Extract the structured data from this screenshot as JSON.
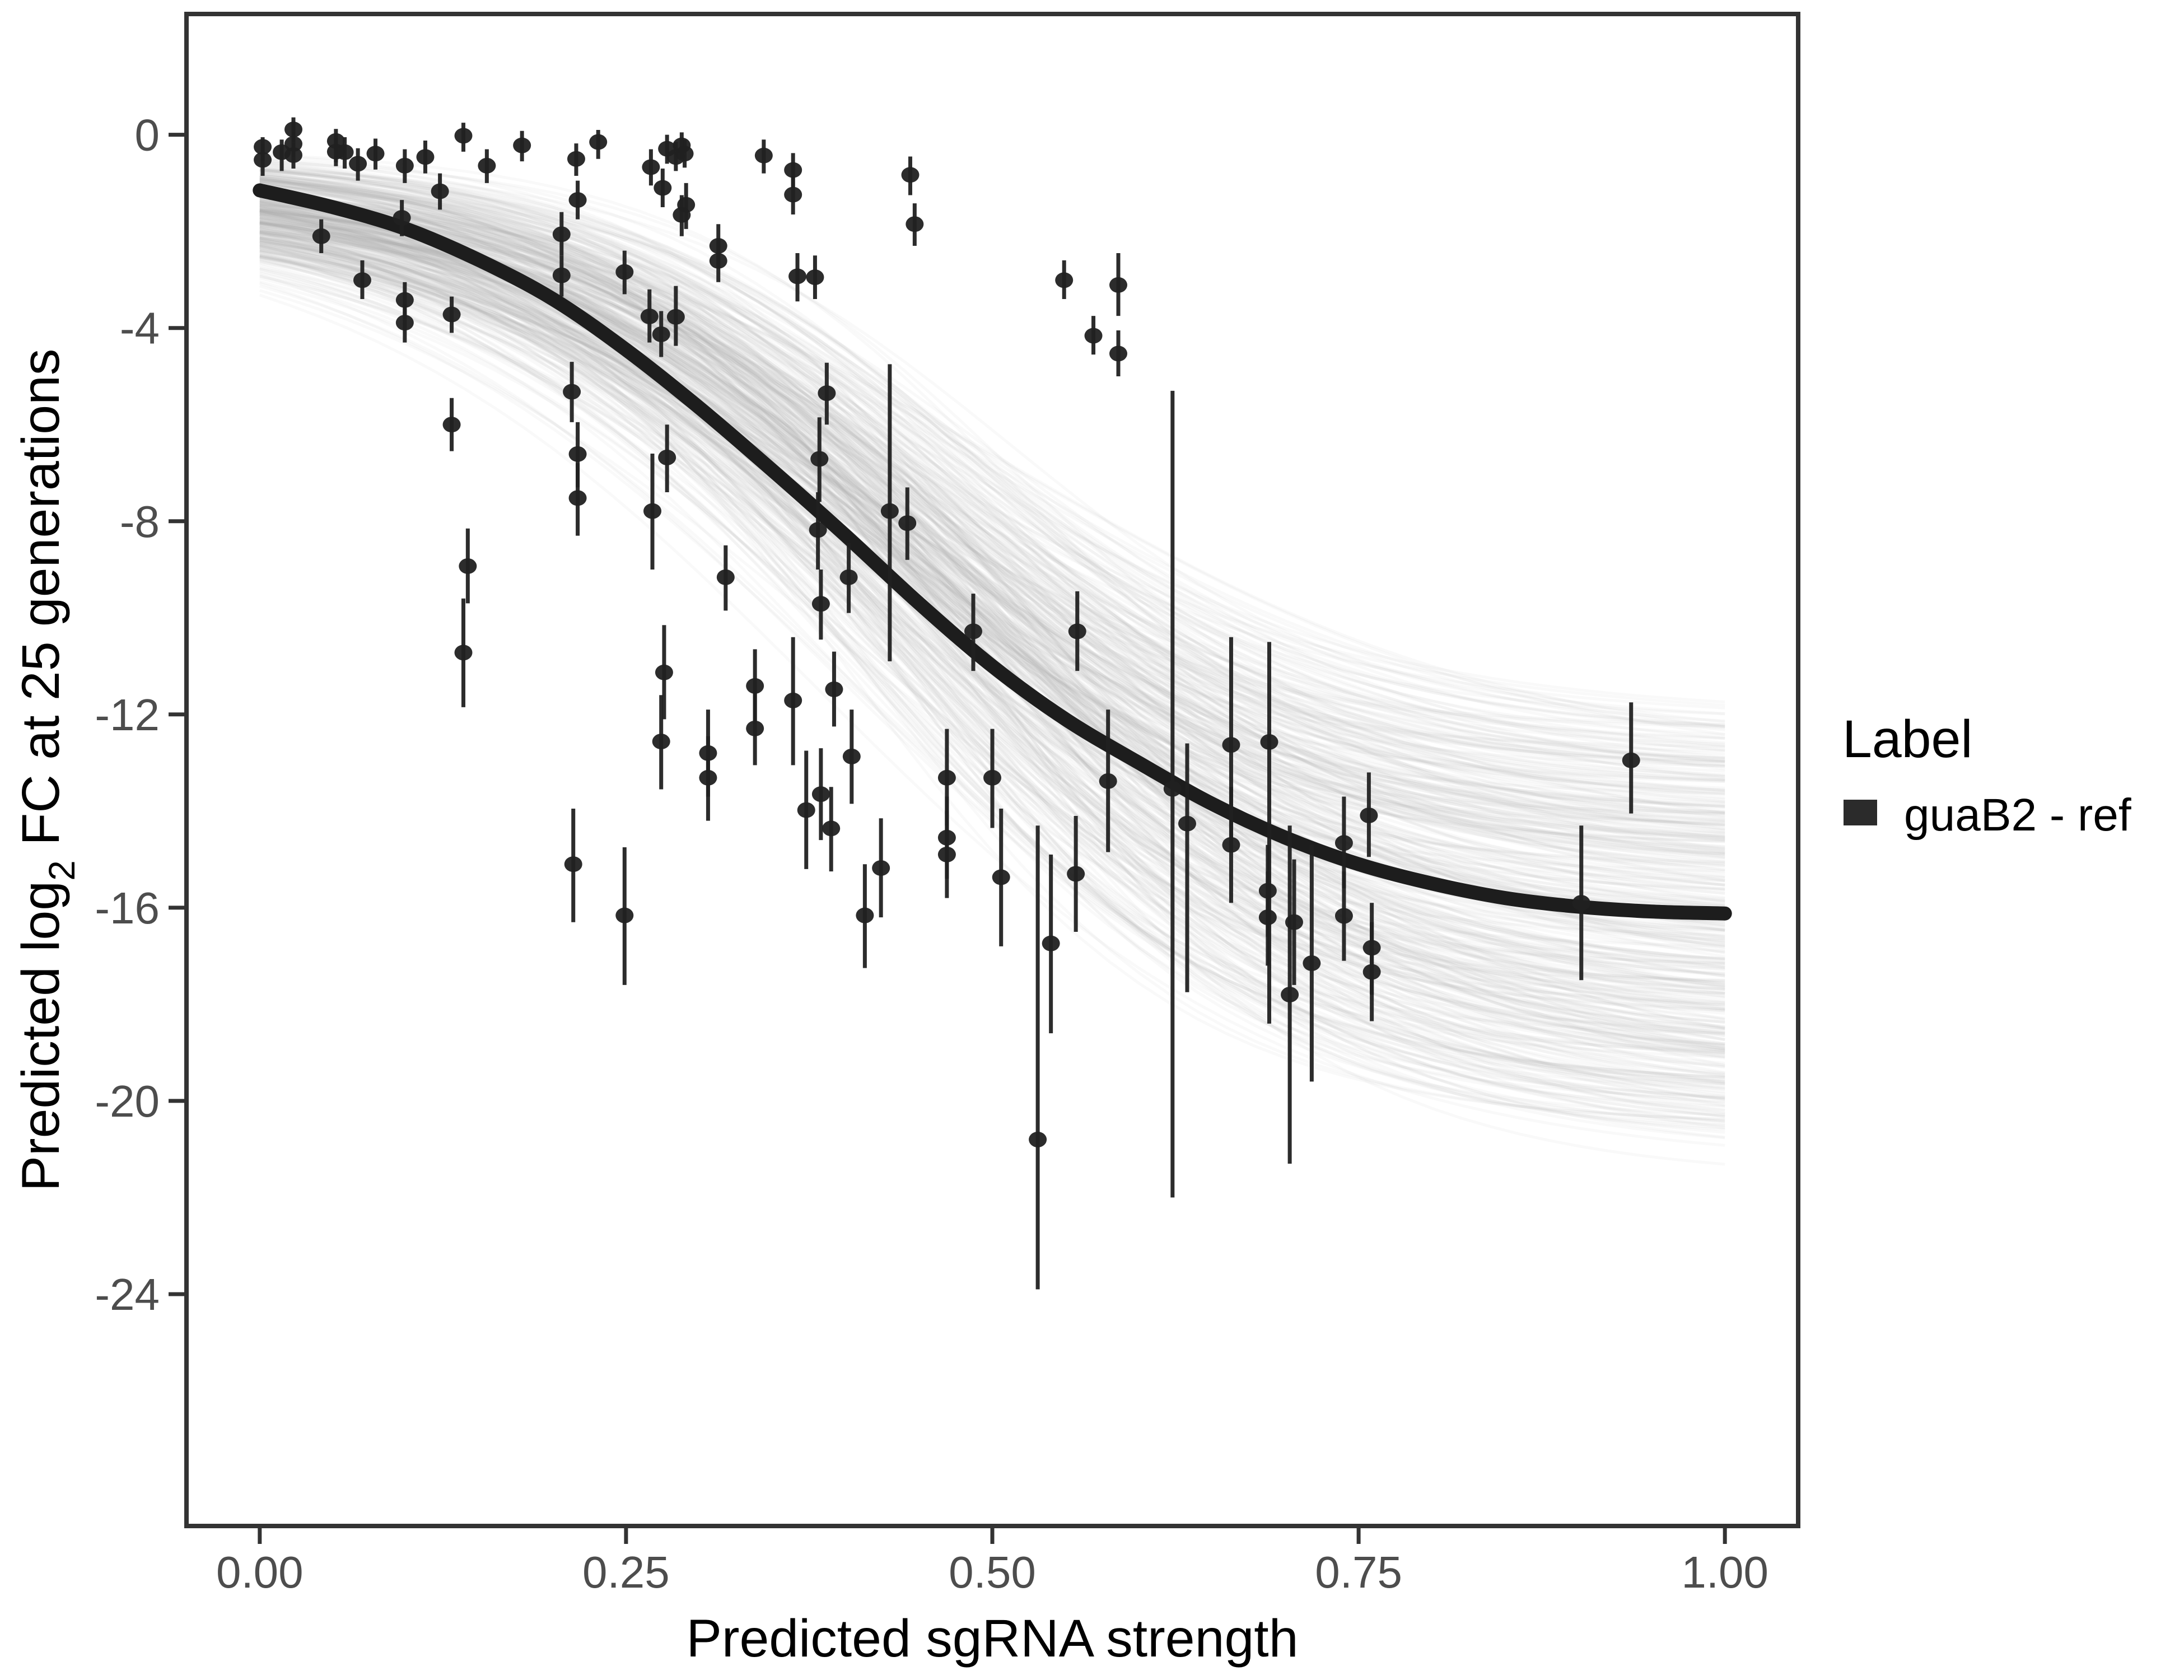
{
  "chart_data": {
    "type": "scatter",
    "title": "",
    "xlabel": "Predicted sgRNA strength",
    "ylabel_parts": {
      "prefix": "Predicted  log",
      "sub": "2",
      "suffix": " FC at 25 generations"
    },
    "x_ticks": [
      "0.00",
      "0.25",
      "0.50",
      "0.75",
      "1.00"
    ],
    "x_tick_values": [
      0,
      0.25,
      0.5,
      0.75,
      1.0
    ],
    "y_ticks": [
      "0",
      "-4",
      "-8",
      "-12",
      "-16",
      "-20",
      "-24"
    ],
    "y_tick_values": [
      0,
      -4,
      -8,
      -12,
      -16,
      -20,
      -24
    ],
    "xlim": [
      -0.05,
      1.05
    ],
    "ylim": [
      -28.8,
      2.5
    ],
    "grid": "off",
    "legend": {
      "position": "right",
      "title": "Label",
      "items": [
        {
          "label": "guaB2 - ref",
          "swatch_color": "#2b2b2b"
        }
      ]
    },
    "fit_curve": {
      "series": "guaB2 - ref",
      "points": [
        [
          0.0,
          -1.15
        ],
        [
          0.05,
          -1.5
        ],
        [
          0.1,
          -1.95
        ],
        [
          0.15,
          -2.6
        ],
        [
          0.2,
          -3.4
        ],
        [
          0.25,
          -4.45
        ],
        [
          0.3,
          -5.65
        ],
        [
          0.35,
          -6.95
        ],
        [
          0.4,
          -8.3
        ],
        [
          0.45,
          -9.7
        ],
        [
          0.5,
          -11.0
        ],
        [
          0.55,
          -12.1
        ],
        [
          0.6,
          -13.0
        ],
        [
          0.65,
          -13.85
        ],
        [
          0.7,
          -14.55
        ],
        [
          0.75,
          -15.1
        ],
        [
          0.8,
          -15.5
        ],
        [
          0.85,
          -15.8
        ],
        [
          0.9,
          -15.98
        ],
        [
          0.95,
          -16.08
        ],
        [
          1.0,
          -16.12
        ]
      ]
    },
    "posterior_band": {
      "description": "posterior draw spaghetti, logistic curves y = -(c + L/(1+exp(-k(x-x0))))",
      "draws": 400,
      "seed": 42,
      "c_range": [
        0.2,
        1.8
      ],
      "L_range": [
        11.5,
        20.0
      ],
      "k_range": [
        5.5,
        9.0
      ],
      "x0_range": [
        0.38,
        0.52
      ],
      "x_domain": [
        0,
        1
      ]
    },
    "points_format": [
      "x",
      "y",
      "ymin",
      "ymax"
    ],
    "points": [
      [
        0.002,
        -0.25,
        -0.55,
        -0.05
      ],
      [
        0.002,
        -0.52,
        -0.85,
        -0.2
      ],
      [
        0.015,
        -0.36,
        -0.75,
        -0.1
      ],
      [
        0.023,
        0.11,
        -0.15,
        0.36
      ],
      [
        0.023,
        -0.19,
        -0.45,
        0.05
      ],
      [
        0.023,
        -0.42,
        -0.7,
        -0.18
      ],
      [
        0.052,
        -0.13,
        -0.57,
        0.12
      ],
      [
        0.052,
        -0.35,
        -0.65,
        -0.08
      ],
      [
        0.058,
        -0.36,
        -0.7,
        -0.05
      ],
      [
        0.067,
        -0.6,
        -0.95,
        -0.28
      ],
      [
        0.079,
        -0.39,
        -0.72,
        -0.08
      ],
      [
        0.099,
        -0.64,
        -1.0,
        -0.3
      ],
      [
        0.113,
        -0.46,
        -0.8,
        -0.12
      ],
      [
        0.123,
        -1.17,
        -1.55,
        -0.8
      ],
      [
        0.139,
        -0.02,
        -0.35,
        0.25
      ],
      [
        0.155,
        -0.64,
        -1.0,
        -0.3
      ],
      [
        0.179,
        -0.22,
        -0.55,
        0.08
      ],
      [
        0.216,
        -0.5,
        -0.85,
        -0.18
      ],
      [
        0.217,
        -1.35,
        -1.75,
        -0.95
      ],
      [
        0.042,
        -2.1,
        -2.45,
        -1.75
      ],
      [
        0.097,
        -1.72,
        -2.1,
        -1.35
      ],
      [
        0.07,
        -3.01,
        -3.4,
        -2.6
      ],
      [
        0.099,
        -3.42,
        -3.8,
        -3.05
      ],
      [
        0.099,
        -3.89,
        -4.3,
        -3.5
      ],
      [
        0.131,
        -3.72,
        -4.1,
        -3.35
      ],
      [
        0.131,
        -6.0,
        -6.55,
        -5.45
      ],
      [
        0.206,
        -2.06,
        -2.5,
        -1.6
      ],
      [
        0.206,
        -2.91,
        -3.35,
        -2.5
      ],
      [
        0.213,
        -5.32,
        -5.95,
        -4.7
      ],
      [
        0.217,
        -6.61,
        -7.3,
        -5.95
      ],
      [
        0.217,
        -7.52,
        -8.3,
        -6.8
      ],
      [
        0.231,
        -0.15,
        -0.5,
        0.1
      ],
      [
        0.267,
        -0.67,
        -1.05,
        -0.3
      ],
      [
        0.278,
        -0.29,
        -0.6,
        0.0
      ],
      [
        0.284,
        -0.46,
        -0.75,
        -0.15
      ],
      [
        0.288,
        -0.22,
        -0.5,
        0.05
      ],
      [
        0.29,
        -0.39,
        -0.68,
        -0.1
      ],
      [
        0.275,
        -1.1,
        -1.5,
        -0.7
      ],
      [
        0.291,
        -1.45,
        -1.95,
        -1.0
      ],
      [
        0.288,
        -1.66,
        -2.1,
        -1.25
      ],
      [
        0.313,
        -2.3,
        -2.75,
        -1.85
      ],
      [
        0.313,
        -2.61,
        -3.05,
        -2.18
      ],
      [
        0.344,
        -0.43,
        -0.8,
        -0.1
      ],
      [
        0.364,
        -0.73,
        -1.1,
        -0.38
      ],
      [
        0.364,
        -1.24,
        -1.65,
        -0.85
      ],
      [
        0.444,
        -0.83,
        -1.25,
        -0.45
      ],
      [
        0.447,
        -1.85,
        -2.3,
        -1.42
      ],
      [
        0.367,
        -2.93,
        -3.45,
        -2.45
      ],
      [
        0.379,
        -2.95,
        -3.4,
        -2.5
      ],
      [
        0.549,
        -3.01,
        -3.4,
        -2.6
      ],
      [
        0.586,
        -3.11,
        -3.75,
        -2.45
      ],
      [
        0.569,
        -4.16,
        -4.55,
        -3.75
      ],
      [
        0.586,
        -4.53,
        -5.0,
        -4.05
      ],
      [
        0.266,
        -3.76,
        -4.3,
        -3.2
      ],
      [
        0.284,
        -3.77,
        -4.37,
        -3.13
      ],
      [
        0.274,
        -4.13,
        -4.6,
        -3.65
      ],
      [
        0.249,
        -2.84,
        -3.3,
        -2.4
      ],
      [
        0.278,
        -6.68,
        -7.4,
        -6.0
      ],
      [
        0.268,
        -7.79,
        -9.0,
        -6.6
      ],
      [
        0.387,
        -5.35,
        -6.0,
        -4.72
      ],
      [
        0.382,
        -6.71,
        -7.6,
        -5.85
      ],
      [
        0.43,
        -7.79,
        -10.9,
        -4.75
      ],
      [
        0.442,
        -8.04,
        -8.8,
        -7.3
      ],
      [
        0.318,
        -9.16,
        -9.85,
        -8.5
      ],
      [
        0.381,
        -8.18,
        -9.0,
        -7.4
      ],
      [
        0.383,
        -9.71,
        -10.45,
        -9.0
      ],
      [
        0.402,
        -9.16,
        -9.9,
        -8.45
      ],
      [
        0.487,
        -10.28,
        -11.1,
        -9.5
      ],
      [
        0.276,
        -11.13,
        -12.1,
        -10.15
      ],
      [
        0.274,
        -12.56,
        -13.55,
        -11.6
      ],
      [
        0.338,
        -11.41,
        -12.2,
        -10.65
      ],
      [
        0.338,
        -12.29,
        -13.05,
        -11.55
      ],
      [
        0.306,
        -12.8,
        -13.7,
        -11.9
      ],
      [
        0.306,
        -13.31,
        -14.2,
        -12.45
      ],
      [
        0.364,
        -11.71,
        -13.05,
        -10.4
      ],
      [
        0.392,
        -11.48,
        -12.25,
        -10.7
      ],
      [
        0.404,
        -12.87,
        -13.85,
        -11.9
      ],
      [
        0.383,
        -13.65,
        -14.6,
        -12.7
      ],
      [
        0.373,
        -13.98,
        -15.2,
        -12.75
      ],
      [
        0.39,
        -14.36,
        -15.25,
        -13.5
      ],
      [
        0.469,
        -13.31,
        -14.3,
        -12.3
      ],
      [
        0.5,
        -13.31,
        -14.35,
        -12.3
      ],
      [
        0.469,
        -14.55,
        -15.4,
        -13.7
      ],
      [
        0.469,
        -14.9,
        -15.8,
        -14.0
      ],
      [
        0.424,
        -15.18,
        -16.2,
        -14.15
      ],
      [
        0.413,
        -16.16,
        -17.25,
        -15.1
      ],
      [
        0.249,
        -16.16,
        -17.6,
        -14.75
      ],
      [
        0.142,
        -8.93,
        -9.7,
        -8.15
      ],
      [
        0.139,
        -10.72,
        -11.85,
        -9.6
      ],
      [
        0.214,
        -15.1,
        -16.3,
        -13.95
      ],
      [
        0.558,
        -10.28,
        -11.1,
        -9.45
      ],
      [
        0.579,
        -13.38,
        -14.85,
        -11.9
      ],
      [
        0.623,
        -13.54,
        -22.0,
        -5.3
      ],
      [
        0.633,
        -14.26,
        -17.75,
        -12.6
      ],
      [
        0.663,
        -12.63,
        -14.8,
        -10.4
      ],
      [
        0.663,
        -14.7,
        -15.9,
        -13.5
      ],
      [
        0.689,
        -12.57,
        -18.4,
        -10.5
      ],
      [
        0.688,
        -15.65,
        -16.6,
        -14.7
      ],
      [
        0.688,
        -16.2,
        -17.2,
        -15.25
      ],
      [
        0.557,
        -15.3,
        -16.5,
        -14.1
      ],
      [
        0.54,
        -16.74,
        -18.6,
        -14.9
      ],
      [
        0.506,
        -15.37,
        -16.8,
        -13.95
      ],
      [
        0.531,
        -20.8,
        -23.9,
        -14.3
      ],
      [
        0.703,
        -17.8,
        -21.3,
        -14.3
      ],
      [
        0.706,
        -16.3,
        -17.6,
        -15.0
      ],
      [
        0.718,
        -17.15,
        -19.6,
        -14.7
      ],
      [
        0.74,
        -14.66,
        -15.6,
        -13.7
      ],
      [
        0.74,
        -16.17,
        -17.1,
        -15.25
      ],
      [
        0.757,
        -14.09,
        -14.95,
        -13.2
      ],
      [
        0.759,
        -16.83,
        -17.8,
        -15.9
      ],
      [
        0.759,
        -17.33,
        -18.35,
        -16.3
      ],
      [
        0.902,
        -15.9,
        -17.5,
        -14.3
      ],
      [
        0.936,
        -12.95,
        -14.05,
        -11.75
      ]
    ]
  },
  "colors": {
    "background": "#ffffff",
    "panel_border": "#333333",
    "axis_tick": "#333333",
    "axis_text": "#4d4d4d",
    "title_text": "#000000",
    "point": "#212121",
    "fit_curve": "#1d1d1d",
    "band_stroke": "#b0b0b0",
    "legend_swatch": "#2b2b2b"
  }
}
